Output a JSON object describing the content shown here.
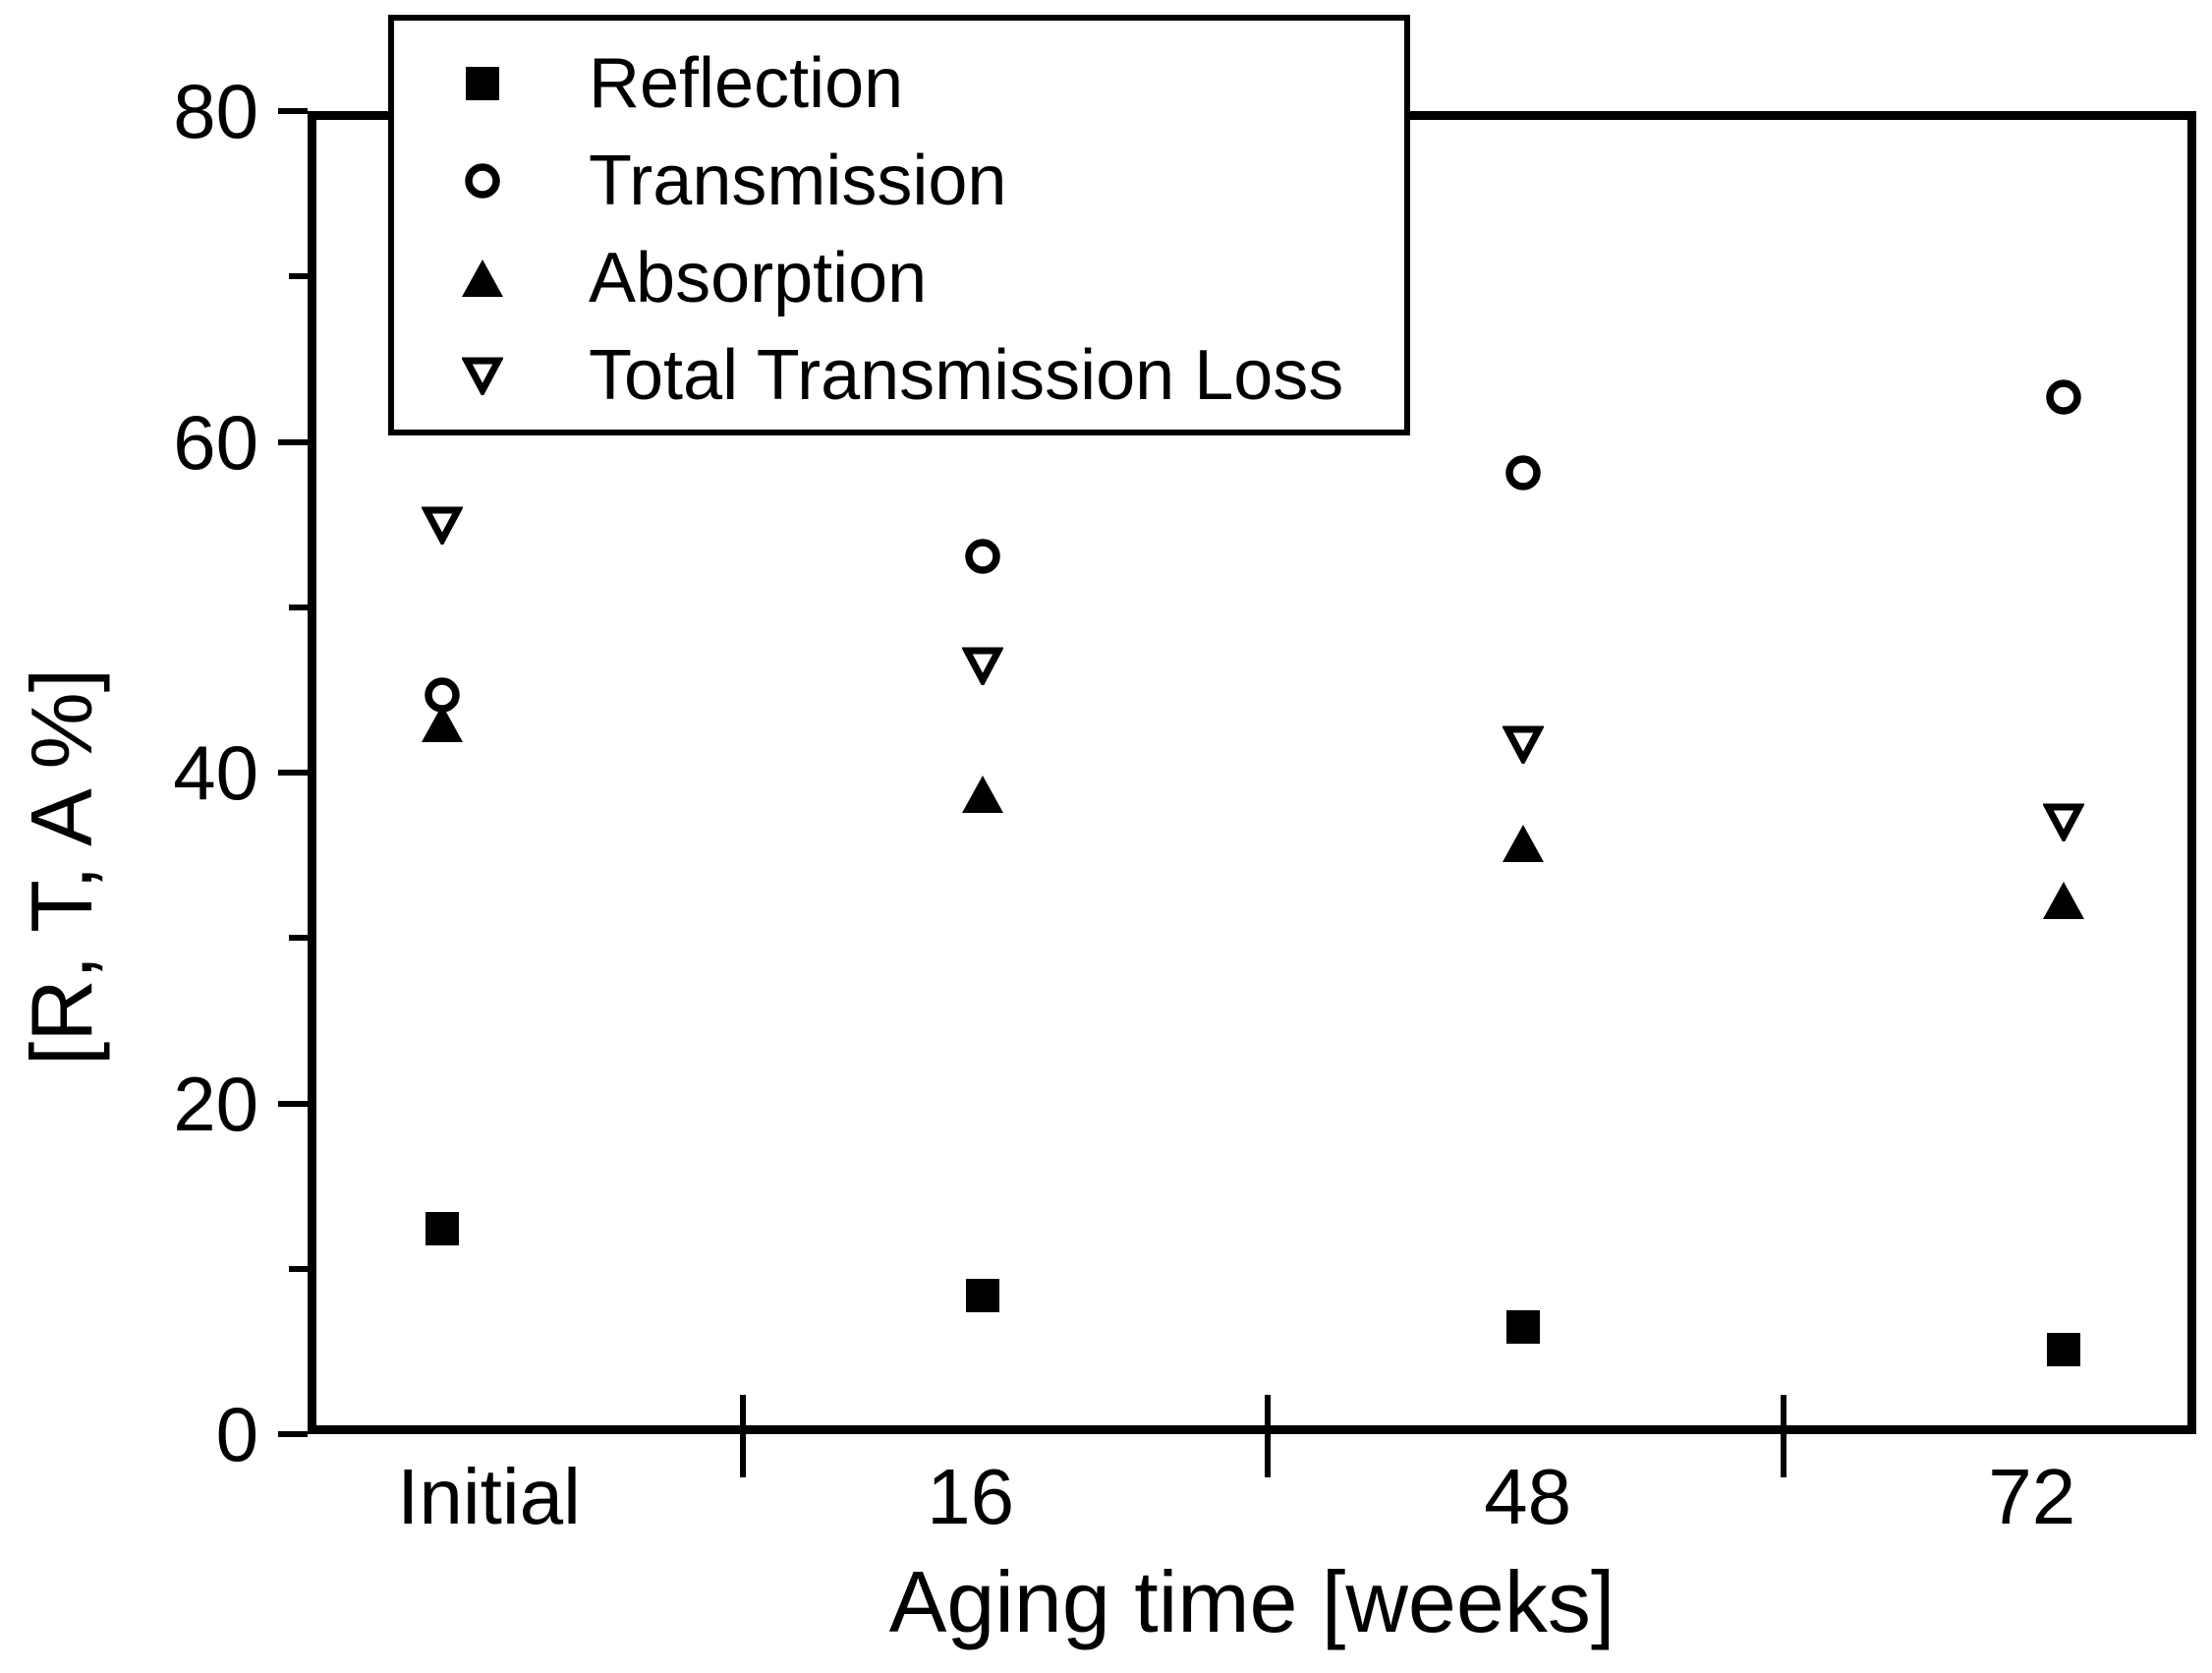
{
  "chart_data": {
    "type": "scatter",
    "categories": [
      "Initial",
      "16",
      "48",
      "72"
    ],
    "series": [
      {
        "name": "Reflection",
        "marker": "filled-square",
        "values": [
          12.4,
          8.4,
          6.5,
          5.1
        ]
      },
      {
        "name": "Transmission",
        "marker": "open-circle",
        "values": [
          44.7,
          53.1,
          58.1,
          62.7
        ]
      },
      {
        "name": "Absorption",
        "marker": "filled-triangle-up",
        "values": [
          43.0,
          38.7,
          35.7,
          32.3
        ]
      },
      {
        "name": "Total Transmission Loss",
        "marker": "open-triangle-down",
        "values": [
          55.0,
          46.5,
          41.7,
          37.0
        ]
      }
    ],
    "title": "",
    "xlabel": "Aging time [weeks]",
    "ylabel": "[R, T, A %]",
    "ylim": [
      0,
      80
    ],
    "y_major_ticks": [
      {
        "value": 0,
        "label": "0"
      },
      {
        "value": 20,
        "label": "20"
      },
      {
        "value": 40,
        "label": "40"
      },
      {
        "value": 60,
        "label": "60"
      },
      {
        "value": 80,
        "label": "80"
      }
    ],
    "y_minor_ticks": [
      10,
      30,
      50,
      70
    ],
    "grid": false,
    "legend_position": "top-left",
    "colors": {
      "foreground": "#000000",
      "background": "#ffffff"
    }
  }
}
